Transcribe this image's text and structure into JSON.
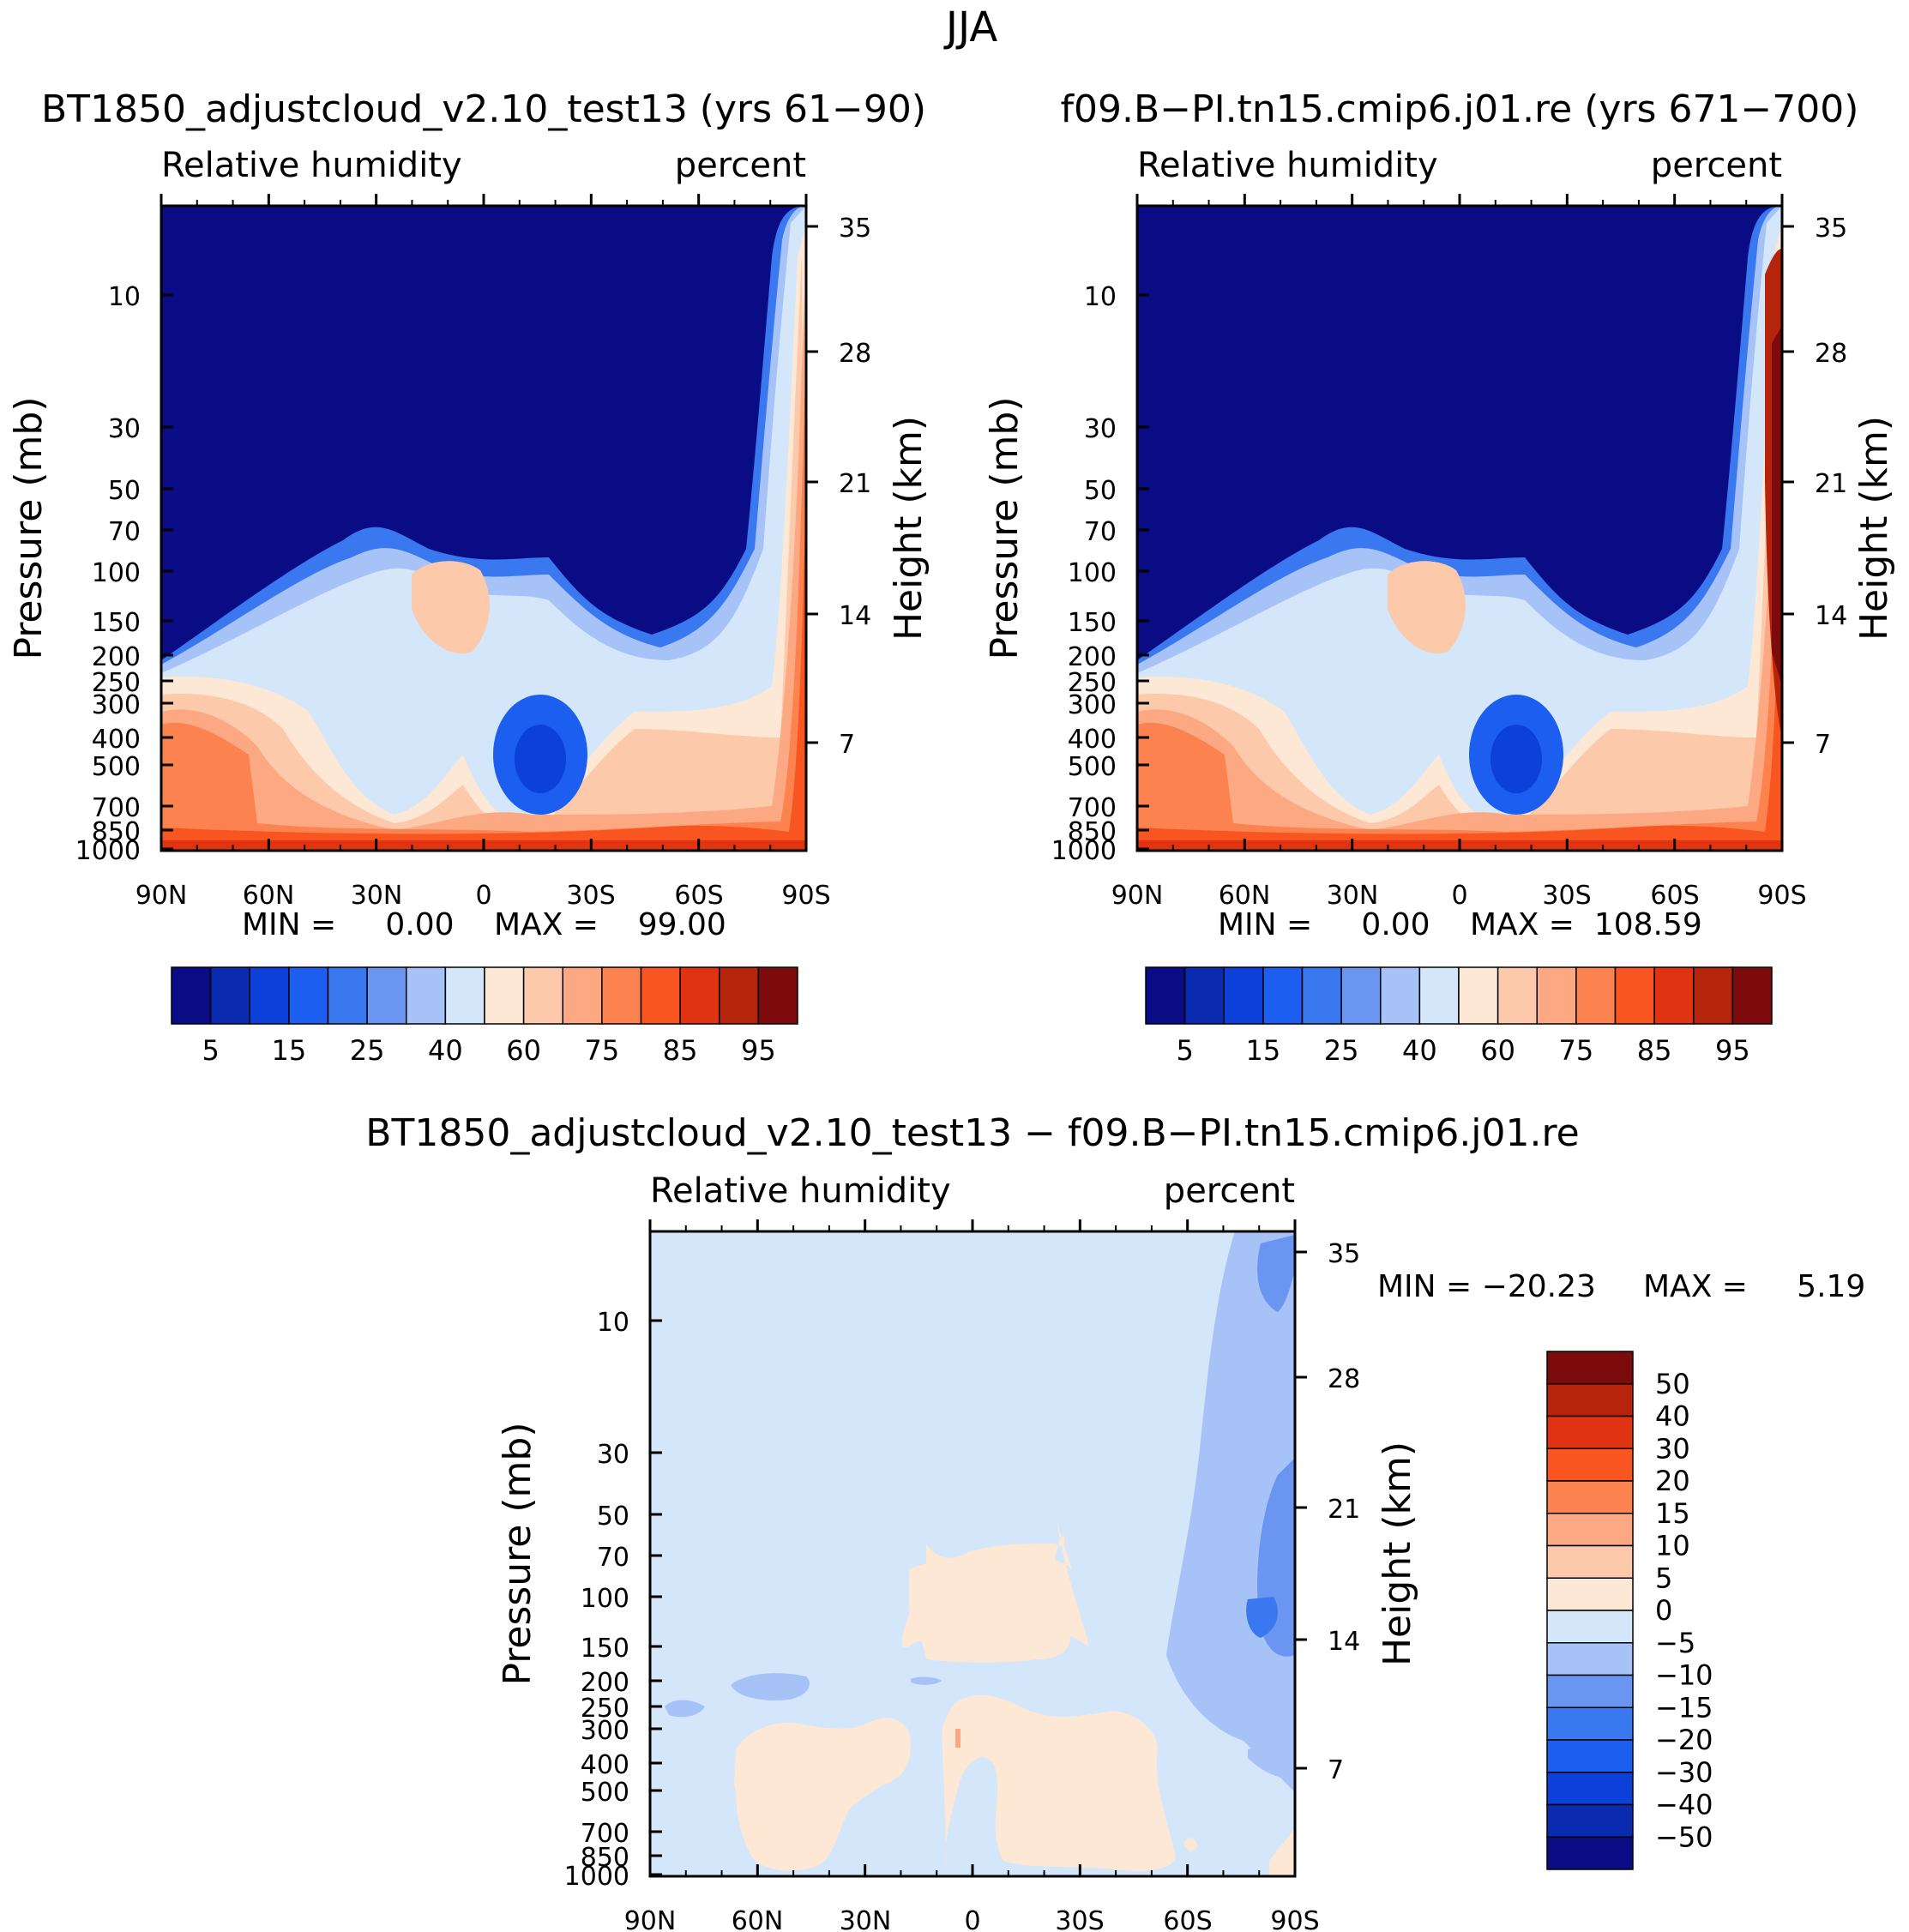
{
  "figure_title": "JJA",
  "chart_data": [
    {
      "type": "contour",
      "title": "BT1850_adjustcloud_v2.10_test13 (yrs 61−90)",
      "left_label": "Relative humidity",
      "right_label": "percent",
      "xlabel": "",
      "ylabel": "Pressure (mb)",
      "y2label": "Height (km)",
      "xticks": [
        "90N",
        "60N",
        "30N",
        "0",
        "30S",
        "60S",
        "90S"
      ],
      "yticks": [
        "10",
        "30",
        "50",
        "70",
        "100",
        "150",
        "200",
        "250",
        "300",
        "400",
        "500",
        "700",
        "850",
        "1000"
      ],
      "y2ticks": [
        "35",
        "28",
        "21",
        "14",
        "7"
      ],
      "min_text": "MIN =     0.00",
      "max_text": "MAX =    99.00",
      "min": 0.0,
      "max": 99.0,
      "levels": [
        5,
        10,
        15,
        20,
        25,
        30,
        40,
        50,
        60,
        65,
        70,
        75,
        80,
        85,
        90,
        95
      ],
      "colorbar_labels": [
        "5",
        "15",
        "25",
        "40",
        "60",
        "75",
        "85",
        "95"
      ]
    },
    {
      "type": "contour",
      "title": "f09.B−PI.tn15.cmip6.j01.re (yrs 671−700)",
      "left_label": "Relative humidity",
      "right_label": "percent",
      "xlabel": "",
      "ylabel": "Pressure (mb)",
      "y2label": "Height (km)",
      "xticks": [
        "90N",
        "60N",
        "30N",
        "0",
        "30S",
        "60S",
        "90S"
      ],
      "yticks": [
        "10",
        "30",
        "50",
        "70",
        "100",
        "150",
        "200",
        "250",
        "300",
        "400",
        "500",
        "700",
        "850",
        "1000"
      ],
      "y2ticks": [
        "35",
        "28",
        "21",
        "14",
        "7"
      ],
      "min_text": "MIN =     0.00",
      "max_text": "MAX =  108.59",
      "min": 0.0,
      "max": 108.59,
      "levels": [
        5,
        10,
        15,
        20,
        25,
        30,
        40,
        50,
        60,
        65,
        70,
        75,
        80,
        85,
        90,
        95
      ],
      "colorbar_labels": [
        "5",
        "15",
        "25",
        "40",
        "60",
        "75",
        "85",
        "95"
      ]
    },
    {
      "type": "contour",
      "title": "BT1850_adjustcloud_v2.10_test13 − f09.B−PI.tn15.cmip6.j01.re",
      "left_label": "Relative humidity",
      "right_label": "percent",
      "xlabel": "",
      "ylabel": "Pressure (mb)",
      "y2label": "Height (km)",
      "xticks": [
        "90N",
        "60N",
        "30N",
        "0",
        "30S",
        "60S",
        "90S"
      ],
      "yticks": [
        "10",
        "30",
        "50",
        "70",
        "100",
        "150",
        "200",
        "250",
        "300",
        "400",
        "500",
        "700",
        "850",
        "1000"
      ],
      "y2ticks": [
        "35",
        "28",
        "21",
        "14",
        "7"
      ],
      "min_text": "MIN = −20.23",
      "max_text": "MAX =     5.19",
      "min": -20.23,
      "max": 5.19,
      "levels": [
        -50,
        -40,
        -30,
        -20,
        -15,
        -10,
        -5,
        0,
        5,
        10,
        15,
        20,
        30,
        40,
        50
      ],
      "colorbar_labels": [
        "50",
        "40",
        "30",
        "20",
        "15",
        "10",
        "5",
        "0",
        "−5",
        "−10",
        "−15",
        "−20",
        "−30",
        "−40",
        "−50"
      ]
    }
  ],
  "colors": {
    "abs_scale": [
      "#0a0c85",
      "#0a2bb0",
      "#0b40d9",
      "#1c5ef0",
      "#3a78f0",
      "#6a96f2",
      "#a6c2f7",
      "#d3e6fa",
      "#fde8d6",
      "#fcc9ab",
      "#fca882",
      "#fc8350",
      "#f95520",
      "#e03312",
      "#b5240b",
      "#7d0b0b"
    ],
    "diff_scale": [
      "#0a0c85",
      "#0a2bb0",
      "#0b40d9",
      "#1c5ef0",
      "#3a78f0",
      "#6a96f2",
      "#a6c2f7",
      "#d3e6fa",
      "#fde8d6",
      "#fcc9ab",
      "#fca882",
      "#fc8350",
      "#f95520",
      "#e03312",
      "#b5240b",
      "#7d0b0b"
    ]
  }
}
